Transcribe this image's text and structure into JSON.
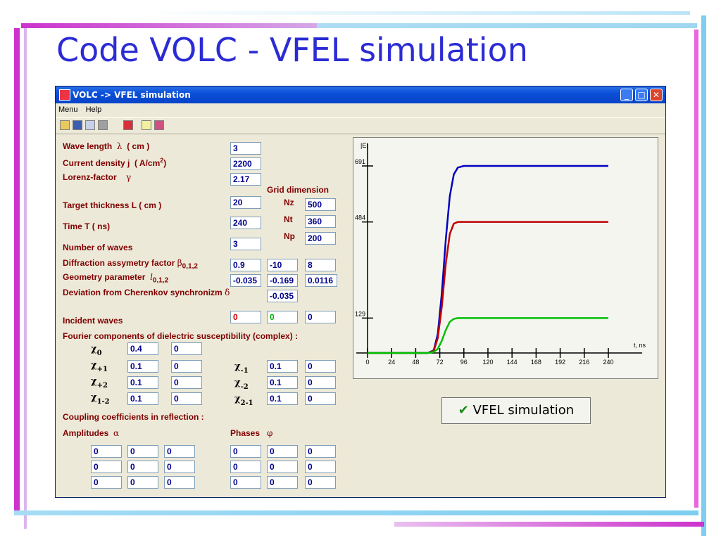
{
  "slide": {
    "title": "Code VOLC - VFEL simulation"
  },
  "window": {
    "title": "VOLC -> VFEL simulation"
  },
  "menu": [
    "Menu",
    "Help"
  ],
  "toolbar": {
    "icons": [
      "open-icon",
      "save-icon",
      "copy-icon",
      "print-icon",
      "run-icon",
      "help-icon",
      "about-icon"
    ]
  },
  "params": {
    "wave_length": {
      "label": "Wave length",
      "sym": "λ",
      "unit": "( cm )",
      "value": "3"
    },
    "current_density": {
      "label": "Current density  j",
      "unit": "( A/cm",
      "unit_sup": "2",
      "unit_end": ")",
      "value": "2200"
    },
    "lorenz_factor": {
      "label": "Lorenz-factor",
      "sym": "γ",
      "value": "2.17"
    },
    "target_thickness": {
      "label": "Target thickness   L  ( cm )",
      "value": "20"
    },
    "time": {
      "label": "Time  T  ( ns)",
      "value": "240"
    },
    "number_of_waves": {
      "label": "Number of waves",
      "value": "3"
    },
    "diffraction": {
      "label": "Diffraction assymetry factor",
      "sym": "β",
      "sub": "0,1,2",
      "values": [
        "0.9",
        "-10",
        "8"
      ]
    },
    "geometry": {
      "label": "Geometry parameter",
      "sym": "l",
      "sub": "0,1,2",
      "values": [
        "-0.035",
        "-0.169",
        "0.0116"
      ]
    },
    "deviation": {
      "label": "Deviation from Cherenkov synchronizm",
      "sym": "δ",
      "value": "-0.035"
    },
    "incident_waves": {
      "label": "Incident waves",
      "values": [
        "0",
        "0",
        "0"
      ]
    }
  },
  "grid": {
    "title": "Grid dimension",
    "nz_label": "Nz",
    "nz": "500",
    "nt_label": "Nt",
    "nt": "360",
    "np_label": "Np",
    "np": "200"
  },
  "fourier": {
    "label": "Fourier components of dielectric susceptibility (complex) :",
    "chi0": {
      "sym": "χ",
      "sub": "0",
      "values": [
        "0.4",
        "0"
      ]
    },
    "chi_p1": {
      "sym": "χ",
      "sub": "+1",
      "values": [
        "0.1",
        "0"
      ]
    },
    "chi_p2": {
      "sym": "χ",
      "sub": "+2",
      "values": [
        "0.1",
        "0"
      ]
    },
    "chi_12": {
      "sym": "χ",
      "sub": "1-2",
      "values": [
        "0.1",
        "0"
      ]
    },
    "chi_m1": {
      "sym": "χ",
      "sub": "-1",
      "values": [
        "0.1",
        "0"
      ]
    },
    "chi_m2": {
      "sym": "χ",
      "sub": "-2",
      "values": [
        "0.1",
        "0"
      ]
    },
    "chi_21": {
      "sym": "χ",
      "sub": "2-1",
      "values": [
        "0.1",
        "0"
      ]
    }
  },
  "coupling": {
    "label": "Coupling coefficients in reflection :",
    "amplitudes_label": "Amplitudes",
    "amplitudes_sym": "α",
    "phases_label": "Phases",
    "phases_sym": "φ",
    "amplitudes": [
      [
        "0",
        "0",
        "0"
      ],
      [
        "0",
        "0",
        "0"
      ],
      [
        "0",
        "0",
        "0"
      ]
    ],
    "phases": [
      [
        "0",
        "0",
        "0"
      ],
      [
        "0",
        "0",
        "0"
      ],
      [
        "0",
        "0",
        "0"
      ]
    ]
  },
  "button": {
    "check": "✔",
    "label": "VFEL simulation"
  },
  "chart_data": {
    "type": "line",
    "ylabel": "|E|",
    "xlabel": "t, ns",
    "xticks": [
      "0",
      "24",
      "48",
      "72",
      "96",
      "120",
      "144",
      "168",
      "192",
      "216",
      "240"
    ],
    "yticks": [
      "129",
      "484",
      "691"
    ],
    "xlim": [
      0,
      240
    ],
    "ylim": [
      0,
      691
    ],
    "series": [
      {
        "color": "#0000c0",
        "x": [
          0,
          60,
          66,
          70,
          74,
          78,
          82,
          86,
          90,
          96,
          240
        ],
        "y": [
          0,
          0,
          10,
          70,
          220,
          420,
          580,
          660,
          685,
          691,
          691
        ]
      },
      {
        "color": "#c00000",
        "x": [
          0,
          60,
          66,
          70,
          74,
          78,
          82,
          86,
          90,
          96,
          240
        ],
        "y": [
          0,
          0,
          8,
          55,
          170,
          330,
          440,
          478,
          484,
          484,
          484
        ]
      },
      {
        "color": "#00c000",
        "x": [
          0,
          60,
          66,
          70,
          74,
          78,
          82,
          86,
          90,
          96,
          240
        ],
        "y": [
          0,
          0,
          4,
          15,
          45,
          85,
          115,
          126,
          129,
          129,
          129
        ]
      }
    ]
  }
}
